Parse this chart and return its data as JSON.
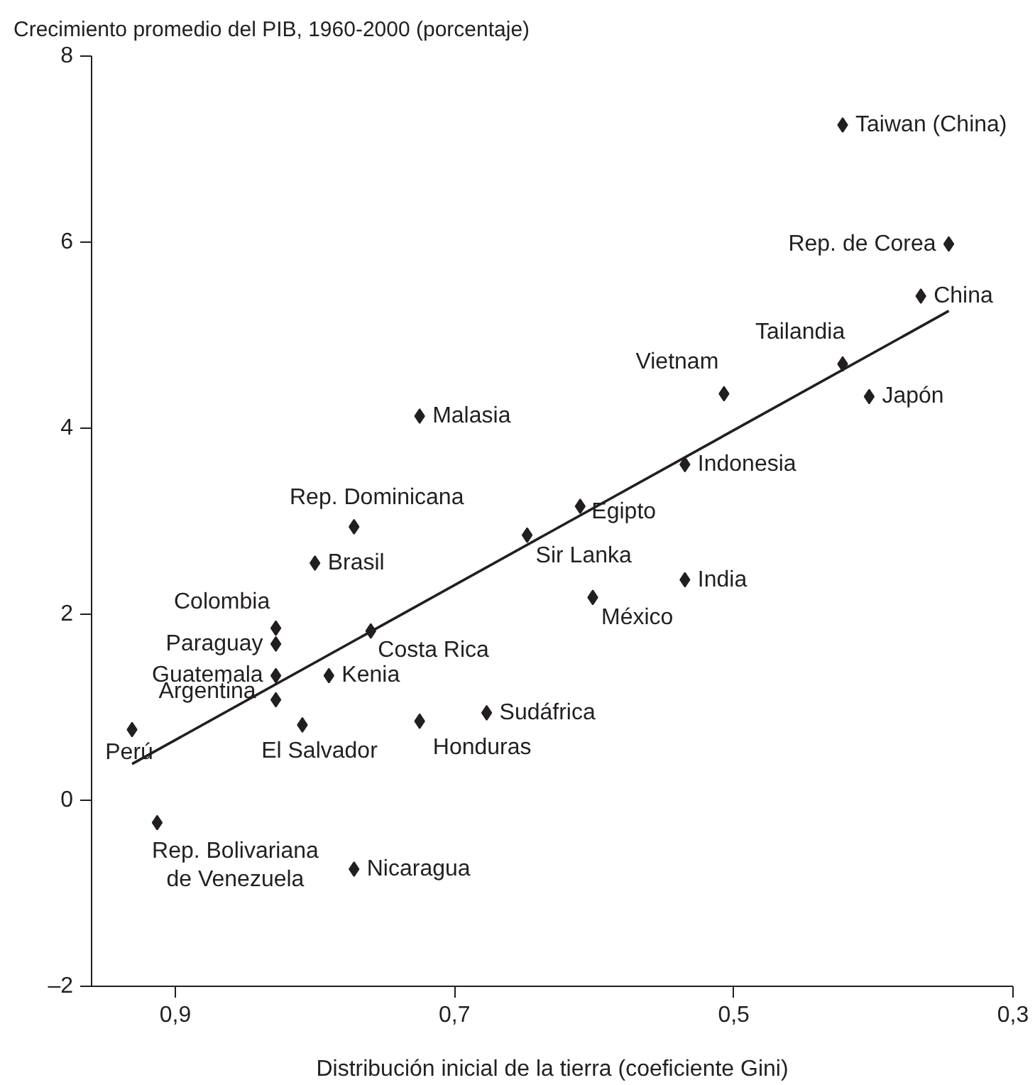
{
  "chart_data": {
    "type": "scatter",
    "xlabel": "Distribución inicial de la tierra (coeficiente Gini)",
    "ylabel": "Crecimiento promedio del PIB, 1960-2000 (porcentaje)",
    "xlim": [
      0.96,
      0.3
    ],
    "ylim": [
      -2,
      8
    ],
    "xticks": [
      {
        "value": 0.9,
        "label": "0,9"
      },
      {
        "value": 0.7,
        "label": "0,7"
      },
      {
        "value": 0.5,
        "label": "0,5"
      },
      {
        "value": 0.3,
        "label": "0,3"
      }
    ],
    "yticks": [
      {
        "value": -2,
        "label": "–2"
      },
      0,
      2,
      4,
      6,
      8
    ],
    "grid": false,
    "series": [
      {
        "color": "#231f20",
        "marker": "diamond",
        "x": [
          0.422,
          0.346,
          0.366,
          0.422,
          0.403,
          0.507,
          0.725,
          0.535,
          0.772,
          0.61,
          0.648,
          0.8,
          0.535,
          0.601,
          0.828,
          0.828,
          0.76,
          0.828,
          0.79,
          0.828,
          0.677,
          0.725,
          0.809,
          0.931,
          0.913,
          0.772
        ],
        "values": [
          7.26,
          5.98,
          5.42,
          4.69,
          4.34,
          4.37,
          4.13,
          3.61,
          2.94,
          3.16,
          2.85,
          2.55,
          2.37,
          2.18,
          1.85,
          1.68,
          1.82,
          1.34,
          1.34,
          1.08,
          0.94,
          0.85,
          0.81,
          0.76,
          -0.24,
          -0.74
        ]
      },
      {
        "type": "line",
        "color": "#231f20",
        "line_style": "solid",
        "x": [
          0.931,
          0.346
        ],
        "values": [
          0.39,
          5.26
        ]
      }
    ],
    "annotations": [
      {
        "text": "Taiwan (China)",
        "x": 0.422,
        "y": 7.26
      },
      {
        "text": "Rep. de Corea",
        "x": 0.346,
        "y": 5.98
      },
      {
        "text": "China",
        "x": 0.366,
        "y": 5.42
      },
      {
        "text": "Tailandia",
        "x": 0.422,
        "y": 4.69
      },
      {
        "text": "Japón",
        "x": 0.403,
        "y": 4.34
      },
      {
        "text": "Vietnam",
        "x": 0.507,
        "y": 4.37
      },
      {
        "text": "Malasia",
        "x": 0.725,
        "y": 4.13
      },
      {
        "text": "Indonesia",
        "x": 0.535,
        "y": 3.61
      },
      {
        "text": "Rep. Dominicana",
        "x": 0.772,
        "y": 2.94
      },
      {
        "text": "Egipto",
        "x": 0.61,
        "y": 3.16
      },
      {
        "text": "Sir Lanka",
        "x": 0.648,
        "y": 2.85
      },
      {
        "text": "Brasil",
        "x": 0.8,
        "y": 2.55
      },
      {
        "text": "India",
        "x": 0.535,
        "y": 2.37
      },
      {
        "text": "México",
        "x": 0.601,
        "y": 2.18
      },
      {
        "text": "Colombia",
        "x": 0.828,
        "y": 1.85
      },
      {
        "text": "Paraguay",
        "x": 0.828,
        "y": 1.68
      },
      {
        "text": "Costa Rica",
        "x": 0.76,
        "y": 1.82
      },
      {
        "text": "Guatemala",
        "x": 0.828,
        "y": 1.34
      },
      {
        "text": "Kenia",
        "x": 0.79,
        "y": 1.34
      },
      {
        "text": "Argentina",
        "x": 0.828,
        "y": 1.08
      },
      {
        "text": "Sudáfrica",
        "x": 0.677,
        "y": 0.94
      },
      {
        "text": "Honduras",
        "x": 0.725,
        "y": 0.85
      },
      {
        "text": "El Salvador",
        "x": 0.809,
        "y": 0.81
      },
      {
        "text": "Perú",
        "x": 0.931,
        "y": 0.76
      },
      {
        "text": "Rep. Bolivariana\nde Venezuela",
        "x": 0.913,
        "y": -0.24
      },
      {
        "text": "Nicaragua",
        "x": 0.772,
        "y": -0.74
      }
    ]
  }
}
